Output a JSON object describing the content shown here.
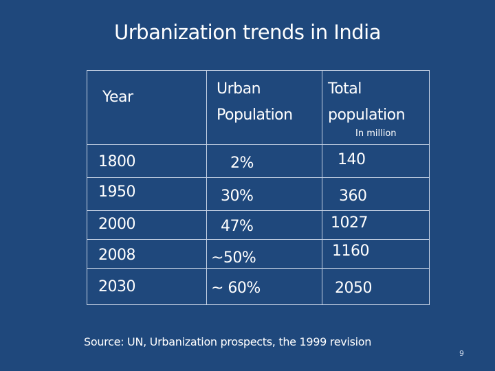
{
  "title": "Urbanization trends in India",
  "table": {
    "headers": {
      "year": "Year",
      "urban_line1": "Urban",
      "urban_line2": "Population",
      "total_line1": "Total",
      "total_line2": "population",
      "total_unit": "In million"
    },
    "rows": [
      {
        "year": "1800",
        "urban": "2%",
        "total": "140"
      },
      {
        "year": "1950",
        "urban": "30%",
        "total": "360"
      },
      {
        "year": "2000",
        "urban": "47%",
        "total": "1027"
      },
      {
        "year": "2008",
        "urban": "~50%",
        "total": "1160"
      },
      {
        "year": "2030",
        "urban": "~ 60%",
        "total": "2050"
      }
    ]
  },
  "source": "Source: UN, Urbanization prospects, the 1999 revision",
  "page_number": "9"
}
